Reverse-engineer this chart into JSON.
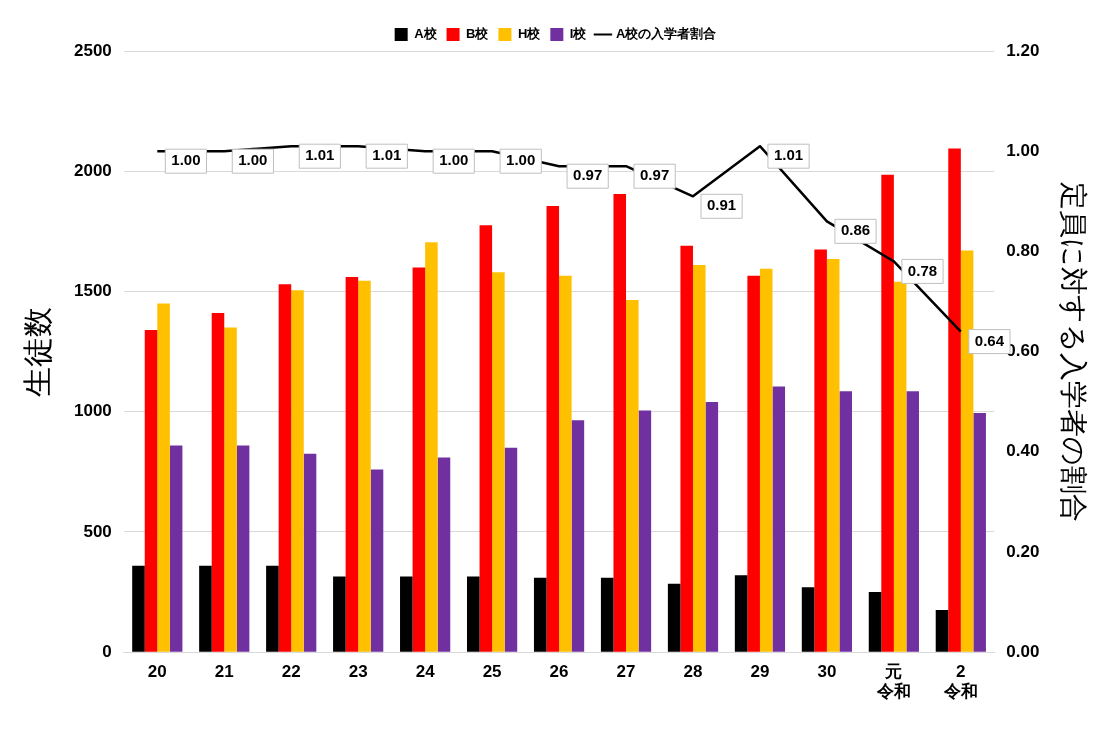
{
  "chart_data": {
    "type": "bar",
    "ylabel": "生徒数",
    "y2label": "定員に対する入学者の割合",
    "categories": [
      "20",
      "21",
      "22",
      "23",
      "24",
      "25",
      "26",
      "27",
      "28",
      "29",
      "30",
      "元令和",
      "2令和"
    ],
    "series": [
      {
        "name": "A校",
        "color": "#000000",
        "values": [
          360,
          360,
          360,
          315,
          315,
          315,
          310,
          310,
          285,
          320,
          270,
          250,
          175
        ]
      },
      {
        "name": "B校",
        "color": "#ff0000",
        "values": [
          1340,
          1410,
          1530,
          1560,
          1600,
          1775,
          1855,
          1905,
          1690,
          1565,
          1675,
          1985,
          2095
        ]
      },
      {
        "name": "H校",
        "color": "#ffc000",
        "values": [
          1450,
          1350,
          1505,
          1545,
          1705,
          1580,
          1565,
          1465,
          1610,
          1595,
          1635,
          1540,
          1670
        ]
      },
      {
        "name": "I校",
        "color": "#7030a0",
        "values": [
          860,
          860,
          825,
          760,
          810,
          850,
          965,
          1005,
          1040,
          1105,
          1085,
          1085,
          995
        ]
      },
      {
        "name": "A校の入学者割合",
        "type": "line",
        "axis": "y2",
        "color": "#000000",
        "marker": "none",
        "values": [
          1.0,
          1.0,
          1.01,
          1.01,
          1.0,
          1.0,
          0.97,
          0.97,
          0.91,
          1.01,
          0.86,
          0.78,
          0.64
        ],
        "value_labels": [
          "1.00",
          "1.00",
          "1.01",
          "1.01",
          "1.00",
          "1.00",
          "0.97",
          "0.97",
          "0.91",
          "1.01",
          "0.86",
          "0.78",
          "0.64"
        ]
      }
    ],
    "ylim": [
      0,
      2500
    ],
    "yticks": [
      0,
      500,
      1000,
      1500,
      2000,
      2500
    ],
    "y2lim": [
      0,
      1.2
    ],
    "y2ticks": [
      {
        "value": 0,
        "label": "0.00"
      },
      {
        "value": 0.2,
        "label": "0.20"
      },
      {
        "value": 0.4,
        "label": "0.40"
      },
      {
        "value": 0.6,
        "label": "0.60"
      },
      {
        "value": 0.8,
        "label": "0.80"
      },
      {
        "value": 1.0,
        "label": "1.00"
      },
      {
        "value": 1.2,
        "label": "1.20"
      }
    ],
    "grid": "y",
    "legend": "top"
  }
}
